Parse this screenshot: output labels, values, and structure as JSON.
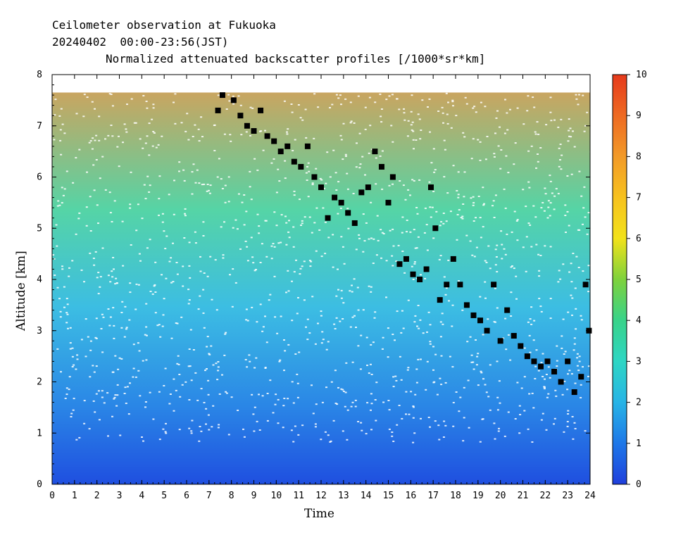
{
  "chart_data": {
    "type": "heatmap",
    "title": "Ceilometer observation at Fukuoka",
    "subtitle": "20240402  00:00-23:56(JST)",
    "quantity": "Normalized attenuated backscatter profiles [/1000*sr*km]",
    "xlabel": "Time",
    "ylabel": "Altitude [km]",
    "xlim": [
      0,
      24
    ],
    "ylim": [
      0,
      8
    ],
    "x_ticks": [
      "0",
      "1",
      "2",
      "3",
      "4",
      "5",
      "6",
      "7",
      "8",
      "9",
      "10",
      "11",
      "12",
      "13",
      "14",
      "15",
      "16",
      "17",
      "18",
      "19",
      "20",
      "21",
      "22",
      "23",
      "24"
    ],
    "y_ticks": [
      "0",
      "1",
      "2",
      "3",
      "4",
      "5",
      "6",
      "7",
      "8"
    ],
    "colorbar": {
      "min": 0,
      "max": 10,
      "ticks": [
        "0",
        "1",
        "2",
        "3",
        "4",
        "5",
        "6",
        "7",
        "8",
        "9",
        "10"
      ],
      "colors": [
        "#1f3fdc",
        "#1e78e8",
        "#27b4e6",
        "#2ed6c4",
        "#38d38a",
        "#7ed23c",
        "#f2e21a",
        "#f7c21e",
        "#f29a28",
        "#ee6a22",
        "#e63a1c"
      ]
    },
    "data_top_km": 7.65,
    "cloud_base_points": [
      {
        "t": 7.4,
        "h": 7.3
      },
      {
        "t": 7.6,
        "h": 7.6
      },
      {
        "t": 8.1,
        "h": 7.5
      },
      {
        "t": 8.4,
        "h": 7.2
      },
      {
        "t": 8.7,
        "h": 7.0
      },
      {
        "t": 9.0,
        "h": 6.9
      },
      {
        "t": 9.3,
        "h": 7.3
      },
      {
        "t": 9.6,
        "h": 6.8
      },
      {
        "t": 9.9,
        "h": 6.7
      },
      {
        "t": 10.2,
        "h": 6.5
      },
      {
        "t": 10.5,
        "h": 6.6
      },
      {
        "t": 10.8,
        "h": 6.3
      },
      {
        "t": 11.1,
        "h": 6.2
      },
      {
        "t": 11.4,
        "h": 6.6
      },
      {
        "t": 11.7,
        "h": 6.0
      },
      {
        "t": 12.0,
        "h": 5.8
      },
      {
        "t": 12.3,
        "h": 5.2
      },
      {
        "t": 12.6,
        "h": 5.6
      },
      {
        "t": 12.9,
        "h": 5.5
      },
      {
        "t": 13.2,
        "h": 5.3
      },
      {
        "t": 13.5,
        "h": 5.1
      },
      {
        "t": 13.8,
        "h": 5.7
      },
      {
        "t": 14.1,
        "h": 5.8
      },
      {
        "t": 14.4,
        "h": 6.5
      },
      {
        "t": 14.7,
        "h": 6.2
      },
      {
        "t": 15.0,
        "h": 5.5
      },
      {
        "t": 15.2,
        "h": 6.0
      },
      {
        "t": 15.5,
        "h": 4.3
      },
      {
        "t": 15.8,
        "h": 4.4
      },
      {
        "t": 16.1,
        "h": 4.1
      },
      {
        "t": 16.4,
        "h": 4.0
      },
      {
        "t": 16.7,
        "h": 4.2
      },
      {
        "t": 16.9,
        "h": 5.8
      },
      {
        "t": 17.1,
        "h": 5.0
      },
      {
        "t": 17.3,
        "h": 3.6
      },
      {
        "t": 17.6,
        "h": 3.9
      },
      {
        "t": 17.9,
        "h": 4.4
      },
      {
        "t": 18.2,
        "h": 3.9
      },
      {
        "t": 18.5,
        "h": 3.5
      },
      {
        "t": 18.8,
        "h": 3.3
      },
      {
        "t": 19.1,
        "h": 3.2
      },
      {
        "t": 19.4,
        "h": 3.0
      },
      {
        "t": 19.7,
        "h": 3.9
      },
      {
        "t": 20.0,
        "h": 2.8
      },
      {
        "t": 20.3,
        "h": 3.4
      },
      {
        "t": 20.6,
        "h": 2.9
      },
      {
        "t": 20.9,
        "h": 2.7
      },
      {
        "t": 21.2,
        "h": 2.5
      },
      {
        "t": 21.5,
        "h": 2.4
      },
      {
        "t": 21.8,
        "h": 2.3
      },
      {
        "t": 22.1,
        "h": 2.4
      },
      {
        "t": 22.4,
        "h": 2.2
      },
      {
        "t": 22.7,
        "h": 2.0
      },
      {
        "t": 23.0,
        "h": 2.4
      },
      {
        "t": 23.3,
        "h": 1.8
      },
      {
        "t": 23.6,
        "h": 2.1
      },
      {
        "t": 23.8,
        "h": 3.9
      },
      {
        "t": 23.95,
        "h": 3.0
      }
    ]
  }
}
